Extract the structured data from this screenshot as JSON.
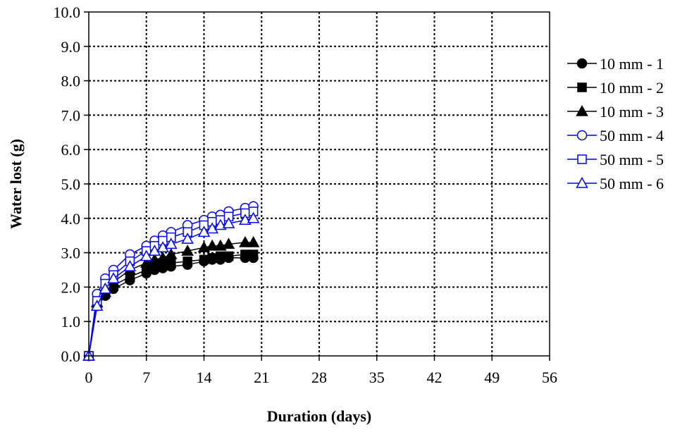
{
  "chart_data": {
    "type": "line",
    "title": "",
    "xlabel": "Duration (days)",
    "ylabel": "Water lost (g)",
    "xlim": [
      0,
      56
    ],
    "ylim": [
      0,
      10
    ],
    "xticks": [
      0,
      7,
      14,
      21,
      28,
      35,
      42,
      49,
      56
    ],
    "yticks": [
      0,
      1,
      2,
      3,
      4,
      5,
      6,
      7,
      8,
      9,
      10
    ],
    "xtick_labels": [
      "0",
      "7",
      "14",
      "21",
      "28",
      "35",
      "42",
      "49",
      "56"
    ],
    "ytick_labels": [
      "0.0",
      "1.0",
      "2.0",
      "3.0",
      "4.0",
      "5.0",
      "6.0",
      "7.0",
      "8.0",
      "9.0",
      "10.0"
    ],
    "grid": true,
    "legend_position": "right",
    "series": [
      {
        "name": "10 mm - 1",
        "color": "#000000",
        "marker": "circle",
        "filled": true,
        "x": [
          0,
          1,
          2,
          3,
          5,
          7,
          8,
          9,
          10,
          12,
          14,
          15,
          16,
          17,
          19,
          20
        ],
        "y": [
          0.0,
          1.45,
          1.75,
          1.95,
          2.2,
          2.4,
          2.5,
          2.55,
          2.6,
          2.65,
          2.75,
          2.8,
          2.8,
          2.85,
          2.85,
          2.85
        ]
      },
      {
        "name": "10 mm - 2",
        "color": "#000000",
        "marker": "square",
        "filled": true,
        "x": [
          0,
          1,
          2,
          3,
          5,
          7,
          8,
          9,
          10,
          12,
          14,
          15,
          16,
          17,
          19,
          20
        ],
        "y": [
          0.0,
          1.5,
          1.8,
          2.05,
          2.3,
          2.5,
          2.6,
          2.65,
          2.7,
          2.75,
          2.8,
          2.85,
          2.9,
          2.9,
          2.95,
          2.95
        ]
      },
      {
        "name": "10 mm - 3",
        "color": "#000000",
        "marker": "triangle",
        "filled": true,
        "x": [
          0,
          1,
          2,
          3,
          5,
          7,
          8,
          9,
          10,
          12,
          14,
          15,
          16,
          17,
          19,
          20
        ],
        "y": [
          0.0,
          1.55,
          1.85,
          2.15,
          2.5,
          2.7,
          2.8,
          2.85,
          2.95,
          3.05,
          3.15,
          3.2,
          3.2,
          3.25,
          3.3,
          3.3
        ]
      },
      {
        "name": "50 mm - 4",
        "color": "#0000ff",
        "marker": "circle",
        "filled": false,
        "x": [
          0,
          1,
          2,
          3,
          5,
          7,
          8,
          9,
          10,
          12,
          14,
          15,
          16,
          17,
          19,
          20
        ],
        "y": [
          0.0,
          1.8,
          2.25,
          2.5,
          2.95,
          3.2,
          3.35,
          3.5,
          3.6,
          3.8,
          3.95,
          4.05,
          4.1,
          4.2,
          4.3,
          4.35
        ]
      },
      {
        "name": "50 mm - 5",
        "color": "#0000ff",
        "marker": "square",
        "filled": false,
        "x": [
          0,
          1,
          2,
          3,
          5,
          7,
          8,
          9,
          10,
          12,
          14,
          15,
          16,
          17,
          19,
          20
        ],
        "y": [
          0.0,
          1.6,
          2.1,
          2.35,
          2.75,
          3.05,
          3.2,
          3.35,
          3.45,
          3.6,
          3.8,
          3.9,
          3.95,
          4.05,
          4.15,
          4.2
        ]
      },
      {
        "name": "50 mm - 6",
        "color": "#0000ff",
        "marker": "triangle",
        "filled": false,
        "x": [
          0,
          1,
          2,
          3,
          5,
          7,
          8,
          9,
          10,
          12,
          14,
          15,
          16,
          17,
          19,
          20
        ],
        "y": [
          0.0,
          1.45,
          1.95,
          2.25,
          2.6,
          2.9,
          3.05,
          3.15,
          3.25,
          3.4,
          3.6,
          3.7,
          3.8,
          3.85,
          3.95,
          4.0
        ]
      }
    ]
  }
}
